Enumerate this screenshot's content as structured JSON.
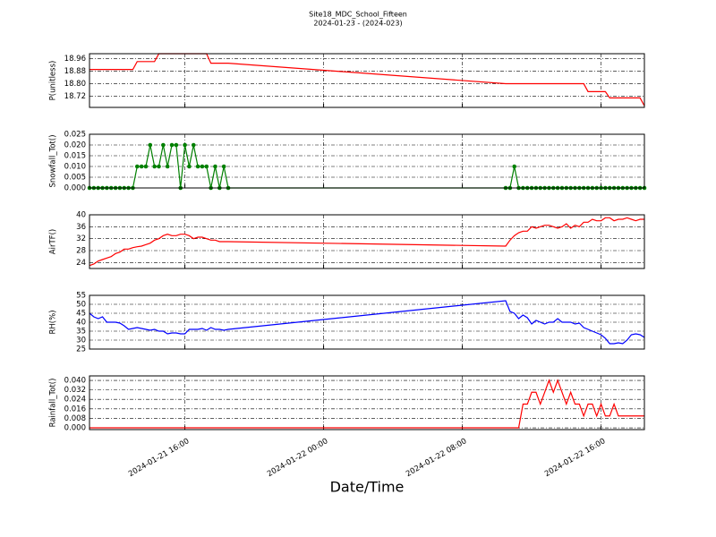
{
  "title": "Site18_MDC_School_Fifteen",
  "subtitle": "2024-01-23 - (2024-023)",
  "xlabel": "Date/Time",
  "xlim": [
    "2024-01-21 10:30",
    "2024-01-22 18:30"
  ],
  "xticks": [
    "2024-01-21 16:00",
    "2024-01-22 00:00",
    "2024-01-22 08:00",
    "2024-01-22 16:00"
  ],
  "chart_data": [
    {
      "type": "line",
      "ylabel": "P(unitless)",
      "color": "#ff0000",
      "ylim": [
        18.65,
        18.99
      ],
      "yticks": [
        18.96,
        18.88,
        {
          "value": 18.8,
          "label": "18.80"
        },
        18.72
      ],
      "x": [
        "2024-01-21 10:30",
        "2024-01-21 10:45",
        "2024-01-21 11:00",
        "2024-01-21 11:15",
        "2024-01-21 11:30",
        "2024-01-21 11:45",
        "2024-01-21 12:00",
        "2024-01-21 12:15",
        "2024-01-21 12:30",
        "2024-01-21 12:45",
        "2024-01-21 13:00",
        "2024-01-21 13:15",
        "2024-01-21 13:30",
        "2024-01-21 13:45",
        "2024-01-21 14:00",
        "2024-01-21 14:15",
        "2024-01-21 14:30",
        "2024-01-21 14:45",
        "2024-01-21 15:00",
        "2024-01-21 15:15",
        "2024-01-21 15:30",
        "2024-01-21 15:45",
        "2024-01-21 16:00",
        "2024-01-21 16:15",
        "2024-01-21 16:30",
        "2024-01-21 16:45",
        "2024-01-21 17:00",
        "2024-01-21 17:15",
        "2024-01-21 17:30",
        "2024-01-21 17:45",
        "2024-01-21 18:00",
        "2024-01-21 18:15",
        "2024-01-21 18:30",
        "2024-01-22 10:30",
        "2024-01-22 10:45",
        "2024-01-22 11:00",
        "2024-01-22 11:15",
        "2024-01-22 11:30",
        "2024-01-22 11:45",
        "2024-01-22 12:00",
        "2024-01-22 12:15",
        "2024-01-22 12:30",
        "2024-01-22 12:45",
        "2024-01-22 13:00",
        "2024-01-22 13:15",
        "2024-01-22 13:30",
        "2024-01-22 13:45",
        "2024-01-22 14:00",
        "2024-01-22 14:15",
        "2024-01-22 14:30",
        "2024-01-22 14:45",
        "2024-01-22 15:00",
        "2024-01-22 15:15",
        "2024-01-22 15:30",
        "2024-01-22 15:45",
        "2024-01-22 16:00",
        "2024-01-22 16:15",
        "2024-01-22 16:30",
        "2024-01-22 16:45",
        "2024-01-22 17:00",
        "2024-01-22 17:15",
        "2024-01-22 17:30",
        "2024-01-22 17:45",
        "2024-01-22 18:00",
        "2024-01-22 18:15",
        "2024-01-22 18:30"
      ],
      "values": [
        18.89,
        18.89,
        18.89,
        18.89,
        18.89,
        18.89,
        18.89,
        18.89,
        18.89,
        18.89,
        18.89,
        18.94,
        18.94,
        18.94,
        18.94,
        18.94,
        18.99,
        18.99,
        18.99,
        18.99,
        18.99,
        18.99,
        18.99,
        18.99,
        18.99,
        18.99,
        18.99,
        18.99,
        18.93,
        18.93,
        18.93,
        18.93,
        18.93,
        18.8,
        18.8,
        18.8,
        18.8,
        18.8,
        18.8,
        18.8,
        18.8,
        18.8,
        18.8,
        18.8,
        18.8,
        18.8,
        18.8,
        18.8,
        18.8,
        18.8,
        18.8,
        18.8,
        18.75,
        18.75,
        18.75,
        18.75,
        18.75,
        18.71,
        18.71,
        18.71,
        18.71,
        18.71,
        18.71,
        18.71,
        18.71,
        18.66
      ]
    },
    {
      "type": "line",
      "ylabel": "Snowfall_Tot()",
      "color": "#008000",
      "markers": true,
      "ylim": [
        0,
        0.025
      ],
      "yticks": [
        0.025,
        {
          "value": 0.02,
          "label": "0.020"
        },
        0.015,
        {
          "value": 0.01,
          "label": "0.010"
        },
        0.005,
        {
          "value": 0,
          "label": "0.000"
        }
      ],
      "x": [
        "2024-01-21 10:30",
        "2024-01-21 10:45",
        "2024-01-21 11:00",
        "2024-01-21 11:15",
        "2024-01-21 11:30",
        "2024-01-21 11:45",
        "2024-01-21 12:00",
        "2024-01-21 12:15",
        "2024-01-21 12:30",
        "2024-01-21 12:45",
        "2024-01-21 13:00",
        "2024-01-21 13:15",
        "2024-01-21 13:30",
        "2024-01-21 13:45",
        "2024-01-21 14:00",
        "2024-01-21 14:15",
        "2024-01-21 14:30",
        "2024-01-21 14:45",
        "2024-01-21 15:00",
        "2024-01-21 15:15",
        "2024-01-21 15:30",
        "2024-01-21 15:45",
        "2024-01-21 16:00",
        "2024-01-21 16:15",
        "2024-01-21 16:30",
        "2024-01-21 16:45",
        "2024-01-21 17:00",
        "2024-01-21 17:15",
        "2024-01-21 17:30",
        "2024-01-21 17:45",
        "2024-01-21 18:00",
        "2024-01-21 18:15",
        "2024-01-21 18:30",
        "2024-01-22 10:30",
        "2024-01-22 10:45",
        "2024-01-22 11:00",
        "2024-01-22 11:15",
        "2024-01-22 11:30",
        "2024-01-22 11:45",
        "2024-01-22 12:00",
        "2024-01-22 12:15",
        "2024-01-22 12:30",
        "2024-01-22 12:45",
        "2024-01-22 13:00",
        "2024-01-22 13:15",
        "2024-01-22 13:30",
        "2024-01-22 13:45",
        "2024-01-22 14:00",
        "2024-01-22 14:15",
        "2024-01-22 14:30",
        "2024-01-22 14:45",
        "2024-01-22 15:00",
        "2024-01-22 15:15",
        "2024-01-22 15:30",
        "2024-01-22 15:45",
        "2024-01-22 16:00",
        "2024-01-22 16:15",
        "2024-01-22 16:30",
        "2024-01-22 16:45",
        "2024-01-22 17:00",
        "2024-01-22 17:15",
        "2024-01-22 17:30",
        "2024-01-22 17:45",
        "2024-01-22 18:00",
        "2024-01-22 18:15",
        "2024-01-22 18:30"
      ],
      "values": [
        0,
        0,
        0,
        0,
        0,
        0,
        0,
        0,
        0,
        0,
        0,
        0.01,
        0.01,
        0.01,
        0.02,
        0.01,
        0.01,
        0.02,
        0.01,
        0.02,
        0.02,
        0,
        0.02,
        0.01,
        0.02,
        0.01,
        0.01,
        0.01,
        0,
        0.01,
        0,
        0.01,
        0,
        0,
        0,
        0.01,
        0,
        0,
        0,
        0,
        0,
        0,
        0,
        0,
        0,
        0,
        0,
        0,
        0,
        0,
        0,
        0,
        0,
        0,
        0,
        0,
        0,
        0,
        0,
        0,
        0,
        0,
        0,
        0,
        0,
        0
      ]
    },
    {
      "type": "line",
      "ylabel": "AirTF()",
      "color": "#ff0000",
      "ylim": [
        22,
        40
      ],
      "yticks": [
        40,
        36,
        32,
        28,
        24
      ],
      "x": [
        "2024-01-21 10:30",
        "2024-01-21 10:45",
        "2024-01-21 11:00",
        "2024-01-21 11:15",
        "2024-01-21 11:30",
        "2024-01-21 11:45",
        "2024-01-21 12:00",
        "2024-01-21 12:15",
        "2024-01-21 12:30",
        "2024-01-21 12:45",
        "2024-01-21 13:00",
        "2024-01-21 13:15",
        "2024-01-21 13:30",
        "2024-01-21 13:45",
        "2024-01-21 14:00",
        "2024-01-21 14:15",
        "2024-01-21 14:30",
        "2024-01-21 14:45",
        "2024-01-21 15:00",
        "2024-01-21 15:15",
        "2024-01-21 15:30",
        "2024-01-21 15:45",
        "2024-01-21 16:00",
        "2024-01-21 16:15",
        "2024-01-21 16:30",
        "2024-01-21 16:45",
        "2024-01-21 17:00",
        "2024-01-21 17:15",
        "2024-01-21 17:30",
        "2024-01-21 17:45",
        "2024-01-21 18:00",
        "2024-01-21 18:15",
        "2024-01-21 18:30",
        "2024-01-22 10:30",
        "2024-01-22 10:45",
        "2024-01-22 11:00",
        "2024-01-22 11:15",
        "2024-01-22 11:30",
        "2024-01-22 11:45",
        "2024-01-22 12:00",
        "2024-01-22 12:15",
        "2024-01-22 12:30",
        "2024-01-22 12:45",
        "2024-01-22 13:00",
        "2024-01-22 13:15",
        "2024-01-22 13:30",
        "2024-01-22 13:45",
        "2024-01-22 14:00",
        "2024-01-22 14:15",
        "2024-01-22 14:30",
        "2024-01-22 14:45",
        "2024-01-22 15:00",
        "2024-01-22 15:15",
        "2024-01-22 15:30",
        "2024-01-22 15:45",
        "2024-01-22 16:00",
        "2024-01-22 16:15",
        "2024-01-22 16:30",
        "2024-01-22 16:45",
        "2024-01-22 17:00",
        "2024-01-22 17:15",
        "2024-01-22 17:30",
        "2024-01-22 17:45",
        "2024-01-22 18:00",
        "2024-01-22 18:15",
        "2024-01-22 18:30"
      ],
      "values": [
        23,
        23.5,
        24.5,
        25,
        25.5,
        26,
        27,
        27.5,
        28.5,
        28.5,
        29,
        29.3,
        29.5,
        30,
        30.5,
        31.5,
        32,
        33,
        33.5,
        33,
        33,
        33.5,
        33.5,
        33,
        32,
        32.5,
        32.5,
        32,
        31.5,
        31.5,
        31,
        31,
        31,
        29.5,
        31.5,
        33,
        34,
        34.5,
        34.5,
        36,
        35.5,
        36,
        36.5,
        36.5,
        36,
        35.5,
        36,
        37,
        35.5,
        36.5,
        36,
        37.5,
        37.5,
        38.5,
        38,
        38,
        39,
        39,
        38,
        38.5,
        38.5,
        39,
        38.5,
        38,
        38.5,
        38.5
      ]
    },
    {
      "type": "line",
      "ylabel": "RH(%)",
      "color": "#0000ff",
      "ylim": [
        25,
        55
      ],
      "yticks": [
        55,
        50,
        45,
        40,
        35,
        30,
        25
      ],
      "x": [
        "2024-01-21 10:30",
        "2024-01-21 10:45",
        "2024-01-21 11:00",
        "2024-01-21 11:15",
        "2024-01-21 11:30",
        "2024-01-21 11:45",
        "2024-01-21 12:00",
        "2024-01-21 12:15",
        "2024-01-21 12:30",
        "2024-01-21 12:45",
        "2024-01-21 13:00",
        "2024-01-21 13:15",
        "2024-01-21 13:30",
        "2024-01-21 13:45",
        "2024-01-21 14:00",
        "2024-01-21 14:15",
        "2024-01-21 14:30",
        "2024-01-21 14:45",
        "2024-01-21 15:00",
        "2024-01-21 15:15",
        "2024-01-21 15:30",
        "2024-01-21 15:45",
        "2024-01-21 16:00",
        "2024-01-21 16:15",
        "2024-01-21 16:30",
        "2024-01-21 16:45",
        "2024-01-21 17:00",
        "2024-01-21 17:15",
        "2024-01-21 17:30",
        "2024-01-21 17:45",
        "2024-01-21 18:00",
        "2024-01-21 18:15",
        "2024-01-21 18:30",
        "2024-01-22 10:30",
        "2024-01-22 10:45",
        "2024-01-22 11:00",
        "2024-01-22 11:15",
        "2024-01-22 11:30",
        "2024-01-22 11:45",
        "2024-01-22 12:00",
        "2024-01-22 12:15",
        "2024-01-22 12:30",
        "2024-01-22 12:45",
        "2024-01-22 13:00",
        "2024-01-22 13:15",
        "2024-01-22 13:30",
        "2024-01-22 13:45",
        "2024-01-22 14:00",
        "2024-01-22 14:15",
        "2024-01-22 14:30",
        "2024-01-22 14:45",
        "2024-01-22 15:00",
        "2024-01-22 15:15",
        "2024-01-22 15:30",
        "2024-01-22 15:45",
        "2024-01-22 16:00",
        "2024-01-22 16:15",
        "2024-01-22 16:30",
        "2024-01-22 16:45",
        "2024-01-22 17:00",
        "2024-01-22 17:15",
        "2024-01-22 17:30",
        "2024-01-22 17:45",
        "2024-01-22 18:00",
        "2024-01-22 18:15",
        "2024-01-22 18:30"
      ],
      "values": [
        45,
        43,
        42,
        43,
        40,
        40,
        40,
        39.5,
        38,
        36,
        36.5,
        37,
        36.5,
        36,
        35.5,
        36,
        35,
        35,
        33.5,
        34,
        34,
        33.5,
        33.5,
        36,
        36,
        36,
        36.5,
        35.5,
        37,
        36,
        36,
        35.5,
        36,
        52,
        46,
        45,
        42,
        44,
        42.5,
        39,
        41,
        40,
        39,
        40,
        40,
        42,
        40,
        40,
        40,
        39,
        39.5,
        37,
        36,
        35,
        34,
        33,
        31,
        28,
        28,
        28.5,
        28,
        30,
        33,
        33.5,
        33,
        31.5
      ]
    },
    {
      "type": "line",
      "ylabel": "Rainfall_Tot()",
      "color": "#ff0000",
      "ylim": [
        -0.0015,
        0.0438
      ],
      "yticks": [
        {
          "value": 0.04,
          "label": "0.040"
        },
        0.032,
        0.024,
        0.016,
        0.008,
        {
          "value": 0,
          "label": "0.000"
        }
      ],
      "x": [
        "2024-01-21 10:30",
        "2024-01-21 10:45",
        "2024-01-21 11:00",
        "2024-01-21 11:15",
        "2024-01-21 11:30",
        "2024-01-21 11:45",
        "2024-01-21 12:00",
        "2024-01-21 12:15",
        "2024-01-21 12:30",
        "2024-01-21 12:45",
        "2024-01-21 13:00",
        "2024-01-21 13:15",
        "2024-01-21 13:30",
        "2024-01-21 13:45",
        "2024-01-21 14:00",
        "2024-01-21 14:15",
        "2024-01-21 14:30",
        "2024-01-21 14:45",
        "2024-01-21 15:00",
        "2024-01-21 15:15",
        "2024-01-21 15:30",
        "2024-01-21 15:45",
        "2024-01-21 16:00",
        "2024-01-21 16:15",
        "2024-01-21 16:30",
        "2024-01-21 16:45",
        "2024-01-21 17:00",
        "2024-01-21 17:15",
        "2024-01-21 17:30",
        "2024-01-21 17:45",
        "2024-01-21 18:00",
        "2024-01-21 18:15",
        "2024-01-21 18:30",
        "2024-01-22 10:30",
        "2024-01-22 10:45",
        "2024-01-22 11:00",
        "2024-01-22 11:15",
        "2024-01-22 11:30",
        "2024-01-22 11:45",
        "2024-01-22 12:00",
        "2024-01-22 12:15",
        "2024-01-22 12:30",
        "2024-01-22 12:45",
        "2024-01-22 13:00",
        "2024-01-22 13:15",
        "2024-01-22 13:30",
        "2024-01-22 13:45",
        "2024-01-22 14:00",
        "2024-01-22 14:15",
        "2024-01-22 14:30",
        "2024-01-22 14:45",
        "2024-01-22 15:00",
        "2024-01-22 15:15",
        "2024-01-22 15:30",
        "2024-01-22 15:45",
        "2024-01-22 16:00",
        "2024-01-22 16:15",
        "2024-01-22 16:30",
        "2024-01-22 16:45",
        "2024-01-22 17:00",
        "2024-01-22 17:15",
        "2024-01-22 17:30",
        "2024-01-22 17:45",
        "2024-01-22 18:00",
        "2024-01-22 18:15",
        "2024-01-22 18:30"
      ],
      "values": [
        0,
        0,
        0,
        0,
        0,
        0,
        0,
        0,
        0,
        0,
        0,
        0,
        0,
        0,
        0,
        0,
        0,
        0,
        0,
        0,
        0,
        0,
        0,
        0,
        0,
        0,
        0,
        0,
        0,
        0,
        0,
        0,
        0,
        0,
        0,
        0,
        0,
        0.02,
        0.02,
        0.03,
        0.03,
        0.02,
        0.03,
        0.04,
        0.03,
        0.04,
        0.03,
        0.02,
        0.03,
        0.02,
        0.02,
        0.01,
        0.02,
        0.02,
        0.01,
        0.02,
        0.01,
        0.01,
        0.02,
        0.01,
        0.01,
        0.01,
        0.01,
        0.01,
        0.01,
        0.01
      ]
    }
  ]
}
